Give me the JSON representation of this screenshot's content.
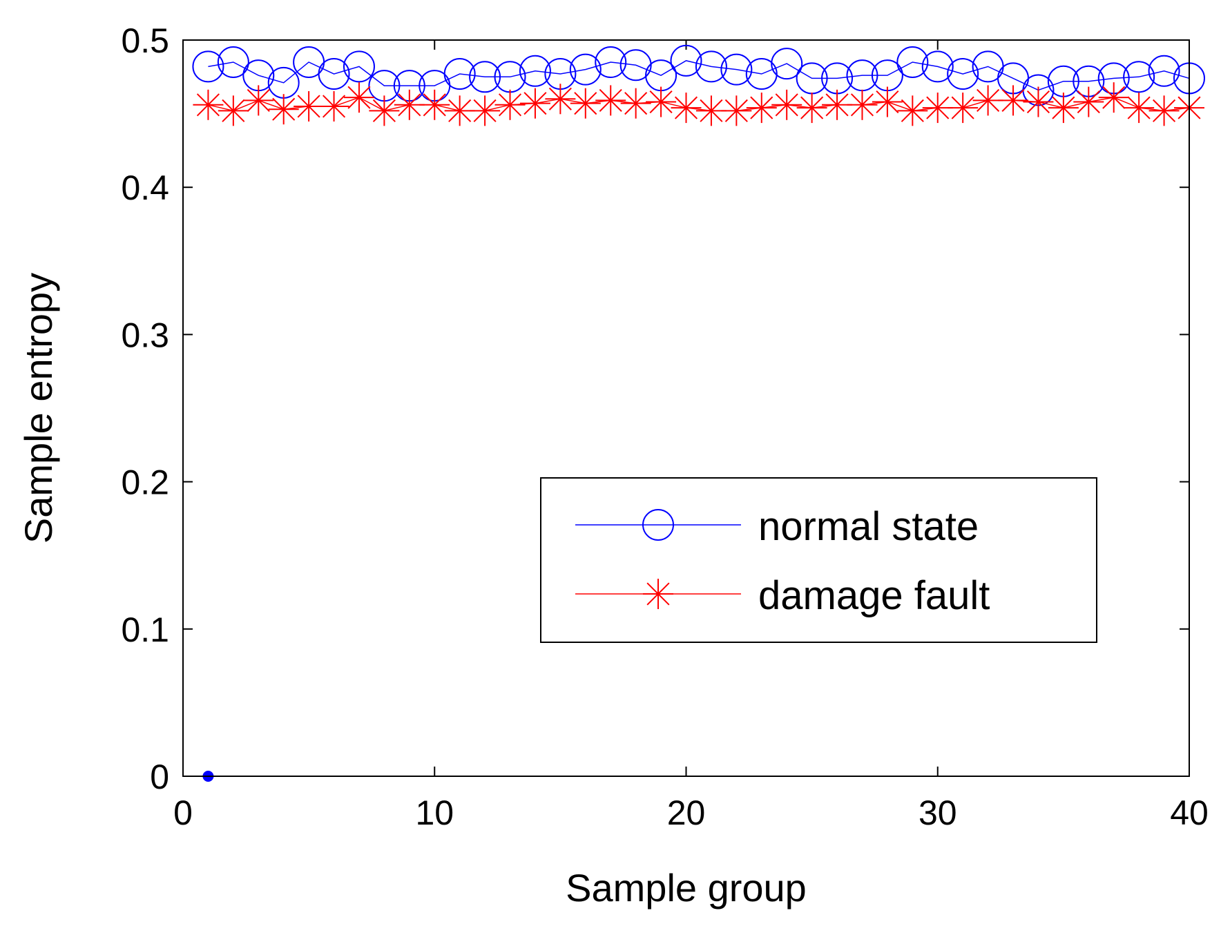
{
  "chart_data": {
    "type": "line",
    "title": "",
    "xlabel": "Sample group",
    "ylabel": "Sample entropy",
    "xlim": [
      0,
      40
    ],
    "ylim": [
      0,
      0.5
    ],
    "xticks": [
      0,
      10,
      20,
      30,
      40
    ],
    "yticks": [
      0,
      0.1,
      0.2,
      0.3,
      0.4,
      0.5
    ],
    "xtick_labels": [
      "0",
      "10",
      "20",
      "30",
      "40"
    ],
    "ytick_labels": [
      "0",
      "0.1",
      "0.2",
      "0.3",
      "0.4",
      "0.5"
    ],
    "grid": false,
    "legend_position": "lower-right",
    "x": [
      1,
      2,
      3,
      4,
      5,
      6,
      7,
      8,
      9,
      10,
      11,
      12,
      13,
      14,
      15,
      16,
      17,
      18,
      19,
      20,
      21,
      22,
      23,
      24,
      25,
      26,
      27,
      28,
      29,
      30,
      31,
      32,
      33,
      34,
      35,
      36,
      37,
      38,
      39,
      40
    ],
    "series": [
      {
        "name": "normal state",
        "color": "#0000ff",
        "marker": "circle",
        "values": [
          0.482,
          0.485,
          0.476,
          0.471,
          0.485,
          0.477,
          0.482,
          0.469,
          0.469,
          0.469,
          0.477,
          0.475,
          0.475,
          0.479,
          0.477,
          0.48,
          0.485,
          0.483,
          0.476,
          0.486,
          0.482,
          0.48,
          0.477,
          0.484,
          0.474,
          0.474,
          0.476,
          0.476,
          0.485,
          0.482,
          0.477,
          0.482,
          0.474,
          0.466,
          0.472,
          0.472,
          0.474,
          0.475,
          0.479,
          0.474
        ]
      },
      {
        "name": "damage fault",
        "color": "#ff0000",
        "marker": "asterisk",
        "values": [
          0.456,
          0.452,
          0.459,
          0.453,
          0.455,
          0.455,
          0.461,
          0.452,
          0.456,
          0.456,
          0.452,
          0.452,
          0.456,
          0.457,
          0.46,
          0.457,
          0.459,
          0.457,
          0.458,
          0.454,
          0.452,
          0.452,
          0.454,
          0.456,
          0.454,
          0.456,
          0.456,
          0.458,
          0.452,
          0.454,
          0.454,
          0.459,
          0.459,
          0.458,
          0.454,
          0.458,
          0.461,
          0.454,
          0.452,
          0.454
        ]
      }
    ],
    "annotations": [
      {
        "x": 1,
        "y": 0,
        "color": "#0000ff",
        "shape": "dot"
      }
    ]
  }
}
